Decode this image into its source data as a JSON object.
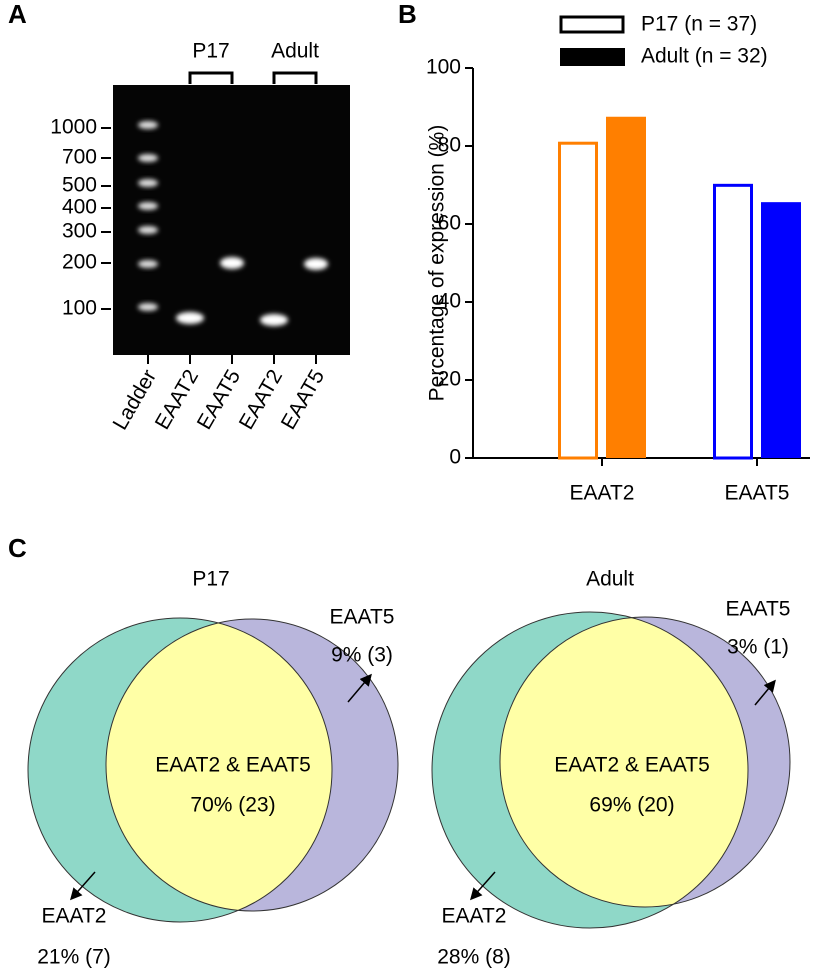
{
  "panel_a": {
    "label": "A",
    "groups": [
      "P17",
      "Adult"
    ],
    "ladder_sizes": [
      1000,
      700,
      500,
      400,
      300,
      200,
      100
    ],
    "lanes": [
      "Ladder",
      "EAAT2",
      "EAAT5",
      "EAAT2",
      "EAAT5"
    ]
  },
  "chart_data": {
    "type": "bar",
    "panel_label": "B",
    "y_label": "Percentage of expression (%)",
    "categories": [
      "EAAT2",
      "EAAT5"
    ],
    "category_colors": [
      "#ff7f00",
      "#0000ff"
    ],
    "legend_color": "#000000",
    "series": [
      {
        "name": "P17 (n = 37)",
        "fill": "open",
        "values": [
          81.1,
          70.3
        ]
      },
      {
        "name": "Adult (n = 32)",
        "fill": "solid",
        "values": [
          87.5,
          65.6
        ]
      }
    ],
    "ylim": [
      0,
      100
    ],
    "yticks": [
      0,
      20,
      40,
      60,
      80,
      100
    ]
  },
  "panel_c": {
    "label": "C",
    "venns": [
      {
        "title": "P17",
        "both_label": "EAAT2 & EAAT5",
        "both_value": "70% (23)",
        "eaat2_label": "EAAT2",
        "eaat2_value": "21% (7)",
        "eaat5_label": "EAAT5",
        "eaat5_value": "9% (3)"
      },
      {
        "title": "Adult",
        "both_label": "EAAT2 & EAAT5",
        "both_value": "69% (20)",
        "eaat2_label": "EAAT2",
        "eaat2_value": "28% (8)",
        "eaat5_label": "EAAT5",
        "eaat5_value": "3% (1)"
      }
    ]
  }
}
